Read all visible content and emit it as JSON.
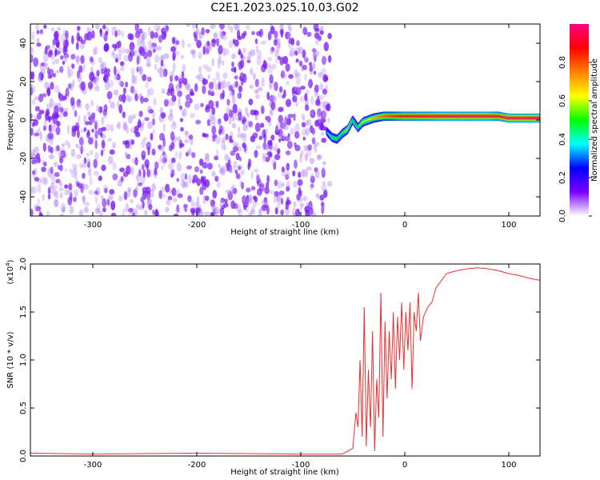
{
  "figure_title": "C2E1.2023.025.10.03.G02",
  "colorbar": {
    "label": "Normalized spectral amplitude",
    "ticks": [
      "0.0",
      "0.2",
      "0.4",
      "0.6",
      "0.8"
    ],
    "tick_values": [
      0.0,
      0.2,
      0.4,
      0.6,
      0.8
    ],
    "range": [
      0,
      1
    ],
    "colormap": [
      "#ffffff",
      "#7b00ff",
      "#0000ff",
      "#00ffff",
      "#00ff00",
      "#ffff00",
      "#ff8000",
      "#ff0000",
      "#ff0080"
    ]
  },
  "chart_data": [
    {
      "type": "heatmap",
      "title": "",
      "xlabel": "Height of straight line (km)",
      "ylabel": "Frequency (Hz)",
      "xlim": [
        -360,
        130
      ],
      "ylim": [
        -50,
        50
      ],
      "x_ticks": [
        -300,
        -200,
        -100,
        0,
        100
      ],
      "x_tick_labels": [
        "-300",
        "-200",
        "-100",
        "0",
        "100"
      ],
      "y_ticks": [
        -40,
        -20,
        0,
        20,
        40
      ],
      "y_tick_labels": [
        "-40",
        "-20",
        "0",
        "20",
        "40"
      ],
      "noise_region": {
        "x": [
          -360,
          -72
        ],
        "y": [
          -50,
          50
        ],
        "amplitude": [
          0.05,
          0.25
        ]
      },
      "signal_track": {
        "x": [
          -75,
          -70,
          -65,
          -60,
          -55,
          -50,
          -45,
          -40,
          -35,
          -30,
          -20,
          -10,
          0,
          20,
          40,
          60,
          80,
          90,
          100,
          130
        ],
        "frequency": [
          -6,
          -9,
          -10,
          -7,
          -5,
          0,
          -4,
          -1,
          0,
          1,
          2,
          2,
          2,
          2,
          2,
          2,
          2,
          2,
          1,
          1
        ],
        "amplitude": [
          0.3,
          0.5,
          0.5,
          0.5,
          0.6,
          0.5,
          0.5,
          0.6,
          0.6,
          0.7,
          0.8,
          0.85,
          0.9,
          0.92,
          0.95,
          0.95,
          0.95,
          0.9,
          0.95,
          0.95
        ]
      },
      "grid": false
    },
    {
      "type": "line",
      "title": "",
      "xlabel": "Height of straight line (km)",
      "ylabel": "SNR (10 * v/v)",
      "scale_note": "(x10",
      "scale_exp": "4",
      "scale_close": ")",
      "xlim": [
        -360,
        130
      ],
      "ylim": [
        0,
        2.0
      ],
      "x_ticks": [
        -300,
        -200,
        -100,
        0,
        100
      ],
      "x_tick_labels": [
        "-300",
        "-200",
        "-100",
        "0",
        "100"
      ],
      "y_ticks": [
        0.0,
        0.5,
        1.0,
        1.5,
        2.0
      ],
      "y_tick_labels": [
        "0.0",
        "0.5",
        "1.0",
        "1.5",
        "2.0"
      ],
      "series": [
        {
          "color": "#e83030",
          "x": [
            -360,
            -300,
            -200,
            -100,
            -60,
            -50,
            -47,
            -45,
            -43,
            -41,
            -39,
            -37,
            -35,
            -33,
            -31,
            -29,
            -27,
            -25,
            -23,
            -21,
            -19,
            -17,
            -15,
            -13,
            -11,
            -9,
            -7,
            -5,
            -3,
            -1,
            1,
            3,
            5,
            7,
            9,
            11,
            13,
            15,
            18,
            22,
            26,
            30,
            40,
            50,
            60,
            70,
            80,
            90,
            100,
            110,
            120,
            130
          ],
          "y": [
            0.03,
            0.02,
            0.03,
            0.02,
            0.02,
            0.08,
            0.45,
            0.3,
            1.0,
            0.2,
            1.55,
            0.1,
            0.9,
            0.3,
            1.3,
            0.05,
            0.8,
            0.4,
            1.7,
            0.2,
            1.4,
            0.6,
            1.3,
            0.8,
            1.5,
            0.7,
            1.45,
            1.0,
            1.6,
            0.9,
            1.5,
            1.1,
            1.6,
            0.7,
            1.5,
            1.3,
            1.7,
            1.2,
            1.45,
            1.55,
            1.6,
            1.75,
            1.9,
            1.93,
            1.95,
            1.96,
            1.95,
            1.93,
            1.9,
            1.88,
            1.85,
            1.83
          ]
        }
      ],
      "grid": false
    }
  ]
}
